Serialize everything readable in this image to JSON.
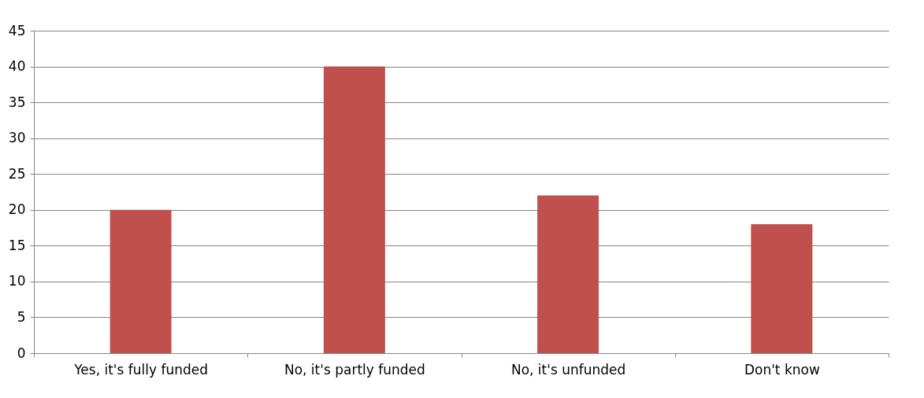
{
  "chart_data": {
    "type": "bar",
    "categories": [
      "Yes, it's fully funded",
      "No, it's partly funded",
      "No, it's unfunded",
      "Don't know"
    ],
    "values": [
      20,
      40,
      22,
      18
    ],
    "color": "#c0504d",
    "ylim": [
      0,
      45
    ],
    "yticks": [
      0,
      5,
      10,
      15,
      20,
      25,
      30,
      35,
      40,
      45
    ],
    "grid": "y"
  }
}
